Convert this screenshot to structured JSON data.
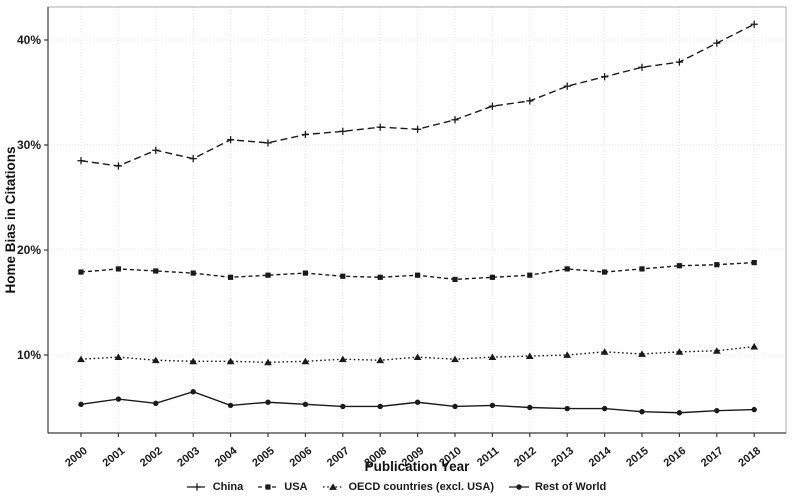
{
  "chart_data": {
    "type": "line",
    "title": "",
    "xlabel": "Publication Year",
    "ylabel": "Home Bias in Citations",
    "x": [
      2000,
      2001,
      2002,
      2003,
      2004,
      2005,
      2006,
      2007,
      2008,
      2009,
      2010,
      2011,
      2012,
      2013,
      2014,
      2015,
      2016,
      2017,
      2018
    ],
    "x_tick_labels": [
      "2000",
      "2001",
      "2002",
      "2003",
      "2004",
      "2005",
      "2006",
      "2007",
      "2008",
      "2009",
      "2010",
      "2011",
      "2012",
      "2013",
      "2014",
      "2015",
      "2016",
      "2017",
      "2018"
    ],
    "y_tick_values": [
      10,
      20,
      30,
      40
    ],
    "y_tick_labels": [
      "10%",
      "20%",
      "30%",
      "40%"
    ],
    "ylim": [
      2.5,
      43.2
    ],
    "grid": true,
    "legend_position": "bottom",
    "series": [
      {
        "name": "China",
        "marker": "plus",
        "line": "longdash",
        "values": [
          28.5,
          28.0,
          29.5,
          28.7,
          30.5,
          30.2,
          31.0,
          31.3,
          31.7,
          31.5,
          32.4,
          33.7,
          34.2,
          35.6,
          36.5,
          37.4,
          37.9,
          39.7,
          41.5
        ]
      },
      {
        "name": "USA",
        "marker": "square",
        "line": "dash",
        "values": [
          17.9,
          18.2,
          18.0,
          17.8,
          17.4,
          17.6,
          17.8,
          17.5,
          17.4,
          17.6,
          17.2,
          17.4,
          17.6,
          18.2,
          17.9,
          18.2,
          18.5,
          18.6,
          18.8
        ]
      },
      {
        "name": "OECD countries (excl. USA)",
        "marker": "triangle",
        "line": "dotted",
        "values": [
          9.6,
          9.8,
          9.5,
          9.4,
          9.4,
          9.3,
          9.4,
          9.6,
          9.5,
          9.8,
          9.6,
          9.8,
          9.9,
          10.0,
          10.3,
          10.1,
          10.3,
          10.4,
          10.8
        ]
      },
      {
        "name": "Rest of World",
        "marker": "circle",
        "line": "solid",
        "values": [
          5.3,
          5.8,
          5.4,
          6.5,
          5.2,
          5.5,
          5.3,
          5.1,
          5.1,
          5.5,
          5.1,
          5.2,
          5.0,
          4.9,
          4.9,
          4.6,
          4.5,
          4.7,
          4.8
        ]
      }
    ],
    "colors": {
      "series": "#1a1a1a",
      "grid": "#e4e4e4",
      "panel_border": "#ababab",
      "axis_line": "#3a3a3a",
      "tick_text": "#1a1a1a"
    }
  }
}
